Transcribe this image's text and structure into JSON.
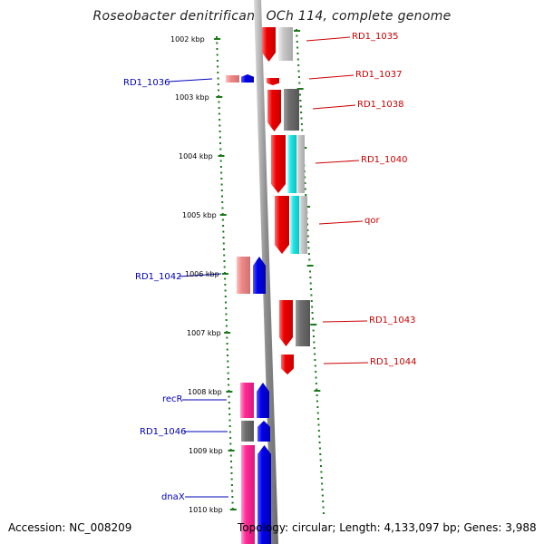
{
  "title": "Roseobacter denitrificans OCh 114, complete genome",
  "accession": "Accession: NC_008209",
  "summary": "Topology: circular; Length: 4,133,097 bp; Genes: 3,988",
  "ruler": {
    "labels": [
      "1002 kbp",
      "1003 kbp",
      "1004 kbp",
      "1005 kbp",
      "1006 kbp",
      "1007 kbp",
      "1008 kbp",
      "1009 kbp",
      "1010 kbp"
    ],
    "tick_color": "#1a7a1a"
  },
  "colors": {
    "red": "#ee0000",
    "light_gray": "#c8c8c8",
    "dark_gray": "#6e6e6e",
    "cyan": "#22e6e6",
    "pink": "#f08a8a",
    "blue": "#0000ee",
    "magenta": "#ff2a96",
    "label_red": "#cc0000",
    "label_blue": "#0000bb",
    "backbone": "#8c8c8c"
  },
  "gene_labels": [
    {
      "text": "RD1_1035",
      "side": "right"
    },
    {
      "text": "RD1_1037",
      "side": "right"
    },
    {
      "text": "RD1_1038",
      "side": "right"
    },
    {
      "text": "RD1_1040",
      "side": "right"
    },
    {
      "text": "qor",
      "side": "right"
    },
    {
      "text": "RD1_1043",
      "side": "right"
    },
    {
      "text": "RD1_1044",
      "side": "right"
    },
    {
      "text": "RD1_1036",
      "side": "left"
    },
    {
      "text": "RD1_1042",
      "side": "left"
    },
    {
      "text": "recR",
      "side": "left"
    },
    {
      "text": "RD1_1046",
      "side": "left"
    },
    {
      "text": "dnaX",
      "side": "left"
    }
  ]
}
